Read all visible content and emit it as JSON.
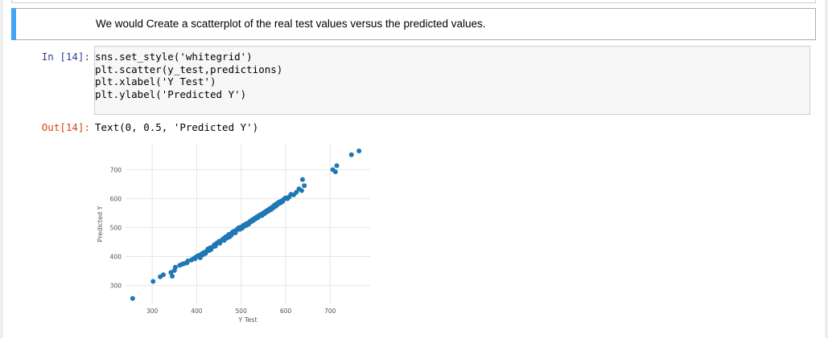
{
  "markdown_cell": {
    "text": "We would Create a scatterplot of the real test values versus the predicted values."
  },
  "code_cell": {
    "prompt": "In [14]:",
    "lines": [
      "sns.set_style('whitegrid')",
      "plt.scatter(y_test,predictions)",
      "plt.xlabel('Y Test')",
      "plt.ylabel('Predicted Y')"
    ]
  },
  "output_cell": {
    "prompt": "Out[14]:",
    "text": "Text(0, 0.5, 'Predicted Y')"
  },
  "colors": {
    "markdown_selector": "#42a5f5",
    "in_prompt": "#303f9f",
    "out_prompt": "#d84315",
    "marker": "#1f77b4"
  },
  "chart_data": {
    "type": "scatter",
    "title": "",
    "xlabel": "Y Test",
    "ylabel": "Predicted Y",
    "x_ticks": [
      300,
      400,
      500,
      600,
      700
    ],
    "y_ticks": [
      300,
      400,
      500,
      600,
      700
    ],
    "xlim": [
      240,
      790
    ],
    "ylim": [
      235,
      790
    ],
    "grid": true,
    "points": [
      [
        256,
        255
      ],
      [
        302,
        314
      ],
      [
        318,
        330
      ],
      [
        325,
        337
      ],
      [
        342,
        345
      ],
      [
        345,
        332
      ],
      [
        350,
        352
      ],
      [
        352,
        363
      ],
      [
        362,
        370
      ],
      [
        368,
        374
      ],
      [
        372,
        376
      ],
      [
        378,
        378
      ],
      [
        380,
        385
      ],
      [
        388,
        388
      ],
      [
        392,
        392
      ],
      [
        396,
        392
      ],
      [
        398,
        398
      ],
      [
        402,
        402
      ],
      [
        405,
        404
      ],
      [
        408,
        396
      ],
      [
        411,
        409
      ],
      [
        414,
        406
      ],
      [
        416,
        414
      ],
      [
        420,
        411
      ],
      [
        422,
        418
      ],
      [
        425,
        426
      ],
      [
        428,
        421
      ],
      [
        430,
        430
      ],
      [
        432,
        424
      ],
      [
        435,
        432
      ],
      [
        438,
        436
      ],
      [
        440,
        441
      ],
      [
        442,
        436
      ],
      [
        445,
        446
      ],
      [
        448,
        448
      ],
      [
        450,
        452
      ],
      [
        452,
        446
      ],
      [
        455,
        455
      ],
      [
        458,
        458
      ],
      [
        460,
        462
      ],
      [
        462,
        456
      ],
      [
        465,
        468
      ],
      [
        468,
        464
      ],
      [
        470,
        471
      ],
      [
        472,
        476
      ],
      [
        474,
        468
      ],
      [
        476,
        478
      ],
      [
        478,
        474
      ],
      [
        480,
        483
      ],
      [
        482,
        486
      ],
      [
        485,
        488
      ],
      [
        487,
        482
      ],
      [
        490,
        492
      ],
      [
        492,
        496
      ],
      [
        495,
        500
      ],
      [
        497,
        494
      ],
      [
        500,
        502
      ],
      [
        502,
        498
      ],
      [
        505,
        508
      ],
      [
        507,
        505
      ],
      [
        510,
        512
      ],
      [
        512,
        508
      ],
      [
        515,
        516
      ],
      [
        517,
        512
      ],
      [
        520,
        522
      ],
      [
        522,
        520
      ],
      [
        525,
        527
      ],
      [
        527,
        524
      ],
      [
        530,
        532
      ],
      [
        532,
        530
      ],
      [
        535,
        537
      ],
      [
        537,
        534
      ],
      [
        540,
        542
      ],
      [
        542,
        540
      ],
      [
        545,
        546
      ],
      [
        547,
        542
      ],
      [
        550,
        551
      ],
      [
        552,
        548
      ],
      [
        555,
        556
      ],
      [
        557,
        553
      ],
      [
        560,
        561
      ],
      [
        562,
        558
      ],
      [
        565,
        566
      ],
      [
        567,
        562
      ],
      [
        570,
        571
      ],
      [
        572,
        568
      ],
      [
        575,
        578
      ],
      [
        578,
        574
      ],
      [
        580,
        583
      ],
      [
        582,
        580
      ],
      [
        585,
        588
      ],
      [
        588,
        585
      ],
      [
        590,
        592
      ],
      [
        593,
        590
      ],
      [
        596,
        598
      ],
      [
        600,
        603
      ],
      [
        604,
        600
      ],
      [
        608,
        606
      ],
      [
        612,
        615
      ],
      [
        618,
        613
      ],
      [
        624,
        622
      ],
      [
        630,
        634
      ],
      [
        636,
        628
      ],
      [
        642,
        645
      ],
      [
        638,
        666
      ],
      [
        706,
        700
      ],
      [
        712,
        693
      ],
      [
        715,
        714
      ],
      [
        748,
        752
      ],
      [
        765,
        765
      ]
    ]
  }
}
